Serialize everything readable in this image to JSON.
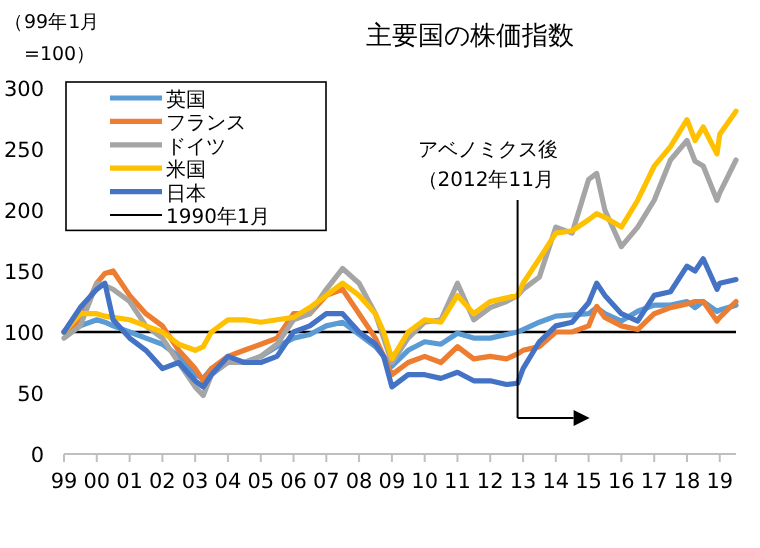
{
  "chart_data": {
    "type": "line",
    "title": "主要国の株価指数",
    "ylabel": "（99年1月=100）",
    "x": [
      "1999-01",
      "1999-07",
      "2000-01",
      "2000-04",
      "2000-07",
      "2001-01",
      "2001-07",
      "2002-01",
      "2002-07",
      "2003-01",
      "2003-04",
      "2003-07",
      "2004-01",
      "2004-07",
      "2005-01",
      "2005-07",
      "2006-01",
      "2006-07",
      "2007-01",
      "2007-07",
      "2008-01",
      "2008-07",
      "2008-10",
      "2009-01",
      "2009-07",
      "2010-01",
      "2010-07",
      "2011-01",
      "2011-07",
      "2012-01",
      "2012-07",
      "2012-11",
      "2013-01",
      "2013-07",
      "2014-01",
      "2014-07",
      "2015-01",
      "2015-04",
      "2015-07",
      "2016-01",
      "2016-07",
      "2017-01",
      "2017-07",
      "2018-01",
      "2018-04",
      "2018-07",
      "2018-12",
      "2019-01",
      "2019-07"
    ],
    "series": [
      {
        "name": "英国",
        "color": "#5b9bd5",
        "values": [
          100,
          105,
          110,
          108,
          105,
          100,
          95,
          90,
          80,
          65,
          62,
          70,
          75,
          75,
          80,
          88,
          95,
          98,
          105,
          108,
          98,
          88,
          80,
          72,
          85,
          92,
          90,
          99,
          95,
          95,
          98,
          100,
          102,
          108,
          113,
          114,
          115,
          120,
          115,
          109,
          117,
          122,
          122,
          125,
          120,
          125,
          117,
          118,
          122
        ]
      },
      {
        "name": "フランス",
        "color": "#ed7d31",
        "values": [
          100,
          110,
          140,
          148,
          150,
          130,
          115,
          105,
          85,
          70,
          60,
          70,
          80,
          85,
          90,
          95,
          115,
          115,
          130,
          135,
          115,
          95,
          80,
          65,
          75,
          80,
          75,
          88,
          78,
          80,
          78,
          82,
          85,
          88,
          100,
          100,
          105,
          121,
          112,
          105,
          102,
          115,
          120,
          123,
          125,
          125,
          109,
          112,
          125
        ]
      },
      {
        "name": "ドイツ",
        "color": "#a5a5a5",
        "values": [
          95,
          105,
          140,
          138,
          135,
          125,
          105,
          95,
          75,
          55,
          48,
          65,
          75,
          75,
          80,
          90,
          110,
          115,
          135,
          152,
          140,
          115,
          95,
          75,
          95,
          108,
          110,
          140,
          110,
          120,
          125,
          130,
          135,
          145,
          186,
          181,
          225,
          230,
          200,
          170,
          186,
          208,
          241,
          257,
          240,
          236,
          208,
          214,
          241
        ]
      },
      {
        "name": "米国",
        "color": "#ffc000",
        "values": [
          100,
          115,
          115,
          113,
          112,
          110,
          105,
          100,
          90,
          85,
          88,
          100,
          110,
          110,
          108,
          110,
          112,
          120,
          130,
          140,
          130,
          115,
          100,
          78,
          100,
          110,
          108,
          130,
          115,
          125,
          128,
          130,
          140,
          160,
          181,
          183,
          192,
          197,
          194,
          186,
          208,
          236,
          252,
          274,
          257,
          268,
          246,
          262,
          281
        ]
      },
      {
        "name": "日本",
        "color": "#4472c4",
        "values": [
          100,
          120,
          135,
          140,
          110,
          95,
          85,
          70,
          75,
          60,
          55,
          65,
          80,
          75,
          75,
          80,
          100,
          105,
          115,
          115,
          100,
          90,
          80,
          55,
          65,
          65,
          62,
          67,
          60,
          60,
          57,
          58,
          70,
          92,
          105,
          108,
          124,
          140,
          130,
          115,
          109,
          130,
          133,
          154,
          150,
          160,
          135,
          140,
          143
        ]
      }
    ],
    "xlim": [
      "1999-01",
      "2019-07"
    ],
    "xticks": [
      {
        "value": "1999",
        "label": "99"
      },
      {
        "value": "2000",
        "label": "00"
      },
      {
        "value": "2001",
        "label": "01"
      },
      {
        "value": "2002",
        "label": "02"
      },
      {
        "value": "2003",
        "label": "03"
      },
      {
        "value": "2004",
        "label": "04"
      },
      {
        "value": "2005",
        "label": "05"
      },
      {
        "value": "2006",
        "label": "06"
      },
      {
        "value": "2007",
        "label": "07"
      },
      {
        "value": "2008",
        "label": "08"
      },
      {
        "value": "2009",
        "label": "09"
      },
      {
        "value": "2010",
        "label": "10"
      },
      {
        "value": "2011",
        "label": "11"
      },
      {
        "value": "2012",
        "label": "12"
      },
      {
        "value": "2013",
        "label": "13"
      },
      {
        "value": "2014",
        "label": "14"
      },
      {
        "value": "2015",
        "label": "15"
      },
      {
        "value": "2016",
        "label": "16"
      },
      {
        "value": "2017",
        "label": "17"
      },
      {
        "value": "2018",
        "label": "18"
      },
      {
        "value": "2019",
        "label": "19"
      }
    ],
    "ylim": [
      0,
      300
    ],
    "yticks": [
      0,
      50,
      100,
      150,
      200,
      250,
      300
    ],
    "ref_lines": [
      {
        "axis": "y",
        "value": 100,
        "label": "1990年1月",
        "color": "#000000"
      },
      {
        "axis": "x",
        "value": "2012-11",
        "label": "アベノミクス後（2012年11月",
        "color": "#000000"
      }
    ],
    "legend": "top left",
    "grid": false,
    "line_style": "solid"
  }
}
